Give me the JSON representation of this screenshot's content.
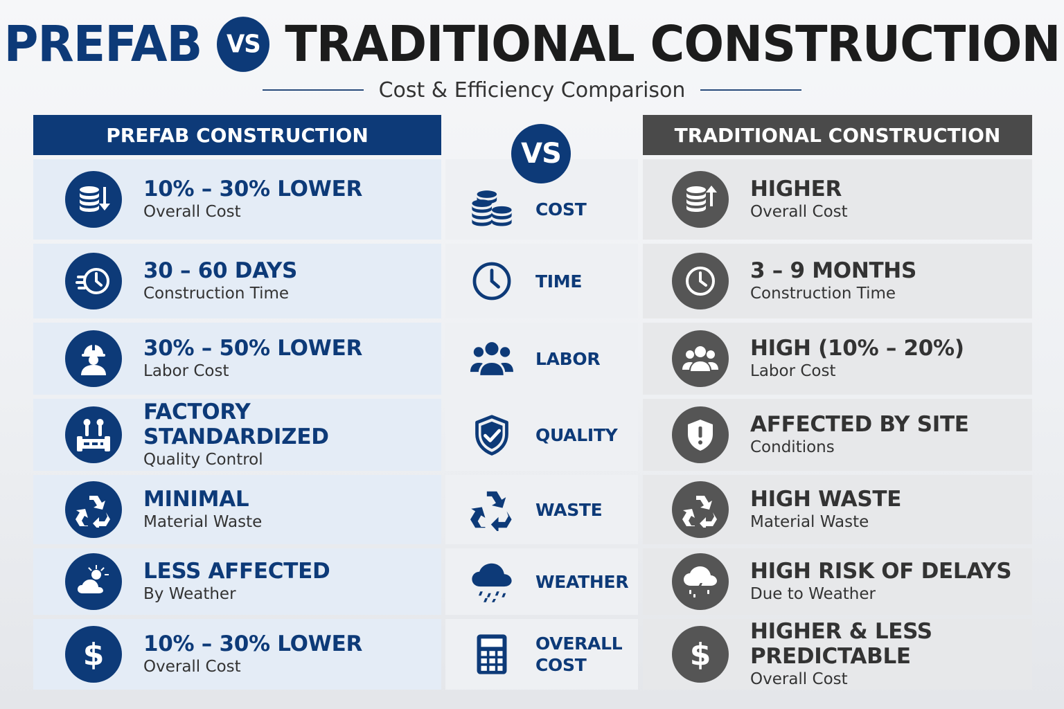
{
  "title": {
    "left": "PREFAB",
    "vs": "VS",
    "right": "TRADITIONAL CONSTRUCTION"
  },
  "subtitle": "Cost & Efficiency Comparison",
  "headers": {
    "prefab": "PREFAB CONSTRUCTION",
    "vs": "VS",
    "traditional": "TRADITIONAL CONSTRUCTION"
  },
  "rows": [
    {
      "category": "COST",
      "category_icon": "coins-icon",
      "prefab": {
        "headline": "10% – 30% LOWER",
        "sub": "Overall Cost",
        "icon": "coins-down-icon"
      },
      "traditional": {
        "headline": "HIGHER",
        "sub": "Overall Cost",
        "icon": "coins-up-icon"
      }
    },
    {
      "category": "TIME",
      "category_icon": "clock-icon",
      "prefab": {
        "headline": "30 – 60 DAYS",
        "sub": "Construction Time",
        "icon": "fast-clock-icon"
      },
      "traditional": {
        "headline": "3 – 9 MONTHS",
        "sub": "Construction Time",
        "icon": "clock-icon"
      }
    },
    {
      "category": "LABOR",
      "category_icon": "people-icon",
      "prefab": {
        "headline": "30% – 50% LOWER",
        "sub": "Labor Cost",
        "icon": "worker-icon"
      },
      "traditional": {
        "headline": "HIGH (10% – 20%)",
        "sub": "Labor Cost",
        "icon": "people-icon"
      }
    },
    {
      "category": "QUALITY",
      "category_icon": "shield-check-icon",
      "prefab": {
        "headline": "FACTORY STANDARDIZED",
        "sub": "Quality Control",
        "icon": "factory-tools-icon"
      },
      "traditional": {
        "headline": "AFFECTED BY SITE",
        "sub": "Conditions",
        "icon": "shield-alert-icon"
      }
    },
    {
      "category": "WASTE",
      "category_icon": "recycle-icon",
      "prefab": {
        "headline": "MINIMAL",
        "sub": "Material Waste",
        "icon": "recycle-icon"
      },
      "traditional": {
        "headline": "HIGH WASTE",
        "sub": "Material Waste",
        "icon": "recycle-icon"
      }
    },
    {
      "category": "WEATHER",
      "category_icon": "rain-cloud-icon",
      "prefab": {
        "headline": "LESS AFFECTED",
        "sub": "By Weather",
        "icon": "sun-cloud-icon"
      },
      "traditional": {
        "headline": "HIGH RISK OF DELAYS",
        "sub": "Due to Weather",
        "icon": "storm-cloud-icon"
      }
    },
    {
      "category": "OVERALL\nCOST",
      "category_icon": "calculator-icon",
      "prefab": {
        "headline": "10% – 30% LOWER",
        "sub": "Overall Cost",
        "icon": "dollar-icon"
      },
      "traditional": {
        "headline": "HIGHER & LESS PREDICTABLE",
        "sub": "Overall Cost",
        "icon": "dollar-icon"
      }
    }
  ],
  "colors": {
    "prefab_blue": "#0d3a78",
    "traditional_gray": "#4a4a4a",
    "prefab_cell": "#e4ecf6",
    "traditional_cell": "#e7e8ea"
  }
}
